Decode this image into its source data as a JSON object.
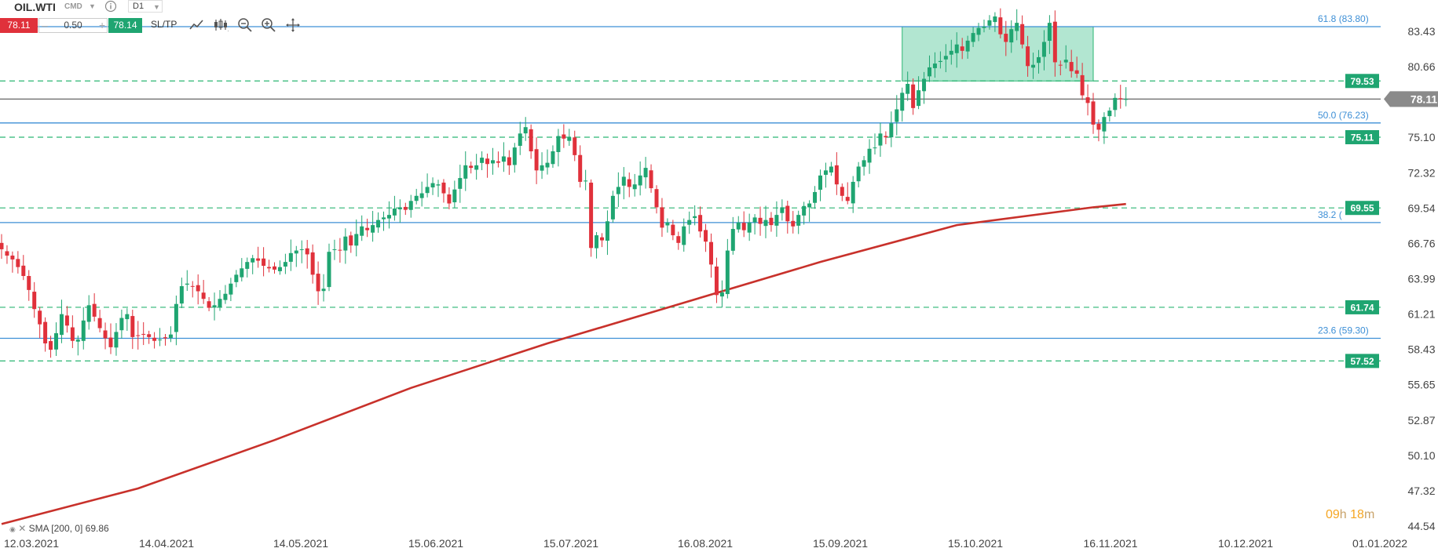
{
  "toolbar": {
    "symbol": "OIL.WTI",
    "market": "CMD",
    "info_icon": "info-icon",
    "timeframe": "D1",
    "sell_price": "78.11",
    "quantity": "0.50",
    "quantity_minus": "–",
    "quantity_plus": "+",
    "buy_price": "78.14",
    "sltp_label": "SL/TP",
    "tools": [
      "line-chart-icon",
      "candlestick-icon",
      "zoom-out-icon",
      "zoom-in-icon",
      "crosshair-icon"
    ]
  },
  "countdown": {
    "hours": "09",
    "h_unit": "h",
    "minutes": "18",
    "m_unit": "m"
  },
  "colors": {
    "up": "#1fa571",
    "down": "#e0313b",
    "fib_line": "#3d8fd6",
    "dashed_level": "#2bb673",
    "sma": "#c8312b",
    "current_price": "#555555",
    "rect_fill": "#7fd6b3"
  },
  "chart_data": {
    "type": "candlestick",
    "y_axis_ticks": [
      83.43,
      80.66,
      77.88,
      75.1,
      72.32,
      69.54,
      66.76,
      63.99,
      61.21,
      58.43,
      55.65,
      52.87,
      50.1,
      47.32,
      44.54
    ],
    "y_axis_labels": [
      "83.43",
      "80.66",
      "",
      "75.10",
      "72.32",
      "69.54",
      "66.76",
      "63.99",
      "61.21",
      "58.43",
      "55.65",
      "52.87",
      "50.10",
      "47.32",
      "44.54"
    ],
    "ylim": [
      44.54,
      86.0
    ],
    "x_axis_labels": [
      "12.03.2021",
      "14.04.2021",
      "14.05.2021",
      "15.06.2021",
      "15.07.2021",
      "16.08.2021",
      "15.09.2021",
      "15.10.2021",
      "16.11.2021",
      "10.12.2021",
      "01.01.2022"
    ],
    "current_price": {
      "value": 78.11,
      "label": "78.11"
    },
    "fib_levels": [
      {
        "value": 83.8,
        "label": "61.8 (83.80)"
      },
      {
        "value": 76.23,
        "label": "50.0 (76.23)"
      },
      {
        "value": 68.4,
        "label": "38.2 ("
      },
      {
        "value": 59.3,
        "label": "23.6 (59.30)"
      }
    ],
    "horizontal_levels": [
      {
        "value": 79.53,
        "label": "79.53"
      },
      {
        "value": 75.11,
        "label": "75.11"
      },
      {
        "value": 69.55,
        "label": "69.55"
      },
      {
        "value": 61.74,
        "label": "61.74"
      },
      {
        "value": 57.52,
        "label": "57.52"
      }
    ],
    "zone": {
      "x_start": 165,
      "x_end": 200,
      "y_low": 79.53,
      "y_high": 83.8
    },
    "sma": {
      "label": "SMA [200, 0] 69.86",
      "points": [
        [
          0,
          44.7
        ],
        [
          25,
          47.5
        ],
        [
          50,
          51.3
        ],
        [
          75,
          55.4
        ],
        [
          100,
          58.9
        ],
        [
          125,
          62.1
        ],
        [
          150,
          65.3
        ],
        [
          175,
          68.2
        ],
        [
          200,
          69.6
        ],
        [
          206,
          69.86
        ]
      ]
    },
    "candles_close": [
      66.3,
      65.8,
      65.5,
      64.9,
      64.2,
      63.1,
      61.6,
      60.4,
      58.9,
      58.4,
      59.7,
      61.2,
      60.3,
      59.1,
      59.2,
      60.7,
      61.9,
      61.0,
      60.1,
      59.3,
      58.6,
      59.8,
      60.9,
      61.2,
      59.4,
      59.5,
      59.6,
      59.4,
      59.1,
      59.2,
      59.3,
      59.6,
      62.0,
      63.4,
      63.6,
      63.4,
      63.0,
      62.4,
      61.7,
      61.9,
      62.4,
      62.8,
      63.6,
      64.3,
      64.8,
      65.3,
      65.6,
      65.4,
      65.0,
      64.8,
      64.7,
      64.9,
      65.3,
      66.0,
      66.2,
      66.3,
      65.9,
      64.3,
      63.0,
      63.2,
      66.1,
      66.3,
      66.2,
      67.3,
      66.6,
      67.5,
      68.1,
      67.8,
      68.2,
      68.6,
      68.8,
      69.0,
      69.5,
      69.6,
      69.4,
      70.1,
      70.5,
      70.7,
      71.2,
      71.5,
      71.4,
      70.7,
      69.9,
      71.0,
      71.9,
      72.9,
      72.7,
      72.9,
      73.5,
      73.0,
      73.3,
      73.1,
      73.6,
      72.9,
      74.3,
      75.4,
      75.9,
      74.0,
      72.5,
      72.9,
      73.1,
      74.0,
      75.2,
      75.0,
      75.1,
      73.7,
      71.6,
      71.7,
      66.4,
      67.4,
      67.0,
      68.5,
      70.5,
      71.2,
      72.0,
      71.2,
      71.4,
      72.1,
      72.7,
      71.1,
      69.6,
      68.0,
      68.4,
      67.4,
      66.8,
      68.1,
      68.6,
      68.9,
      67.7,
      66.9,
      65.1,
      62.7,
      62.9,
      66.2,
      67.9,
      68.4,
      67.8,
      68.4,
      68.8,
      68.3,
      68.6,
      68.2,
      69.0,
      69.6,
      68.5,
      68.1,
      69.0,
      69.7,
      69.9,
      70.8,
      72.1,
      72.5,
      72.8,
      71.4,
      70.5,
      70.1,
      71.6,
      72.8,
      73.3,
      74.2,
      74.3,
      75.4,
      75.1,
      76.2,
      77.3,
      78.6,
      79.3,
      77.4,
      78.8,
      79.7,
      80.6,
      80.9,
      81.1,
      81.5,
      81.9,
      82.4,
      81.9,
      82.7,
      83.3,
      83.7,
      83.8,
      84.3,
      84.6,
      83.2,
      82.6,
      83.6,
      84.1,
      82.4,
      80.7,
      80.8,
      81.4,
      82.6,
      84.1,
      81.0,
      80.8,
      81.2,
      80.3,
      80.1,
      78.4,
      77.8,
      76.1,
      75.7,
      76.7,
      77.2,
      78.2,
      78.1,
      78.11
    ]
  }
}
